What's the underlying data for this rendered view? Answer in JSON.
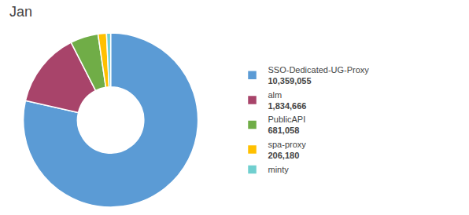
{
  "chart_data": {
    "type": "pie",
    "title": "Jan",
    "categories": [
      "SSO-Dedicated-UG-Proxy",
      "alm",
      "PublicAPI",
      "spa-proxy",
      "minty"
    ],
    "values": [
      10359055,
      1834666,
      681058,
      206180,
      100000
    ],
    "value_labels": [
      "10,359,055",
      "1,834,666",
      "681,058",
      "206,180",
      null
    ],
    "colors": [
      "#5B9BD5",
      "#A8446A",
      "#70AD47",
      "#FFC000",
      "#70CFCF"
    ],
    "legend": "right"
  }
}
